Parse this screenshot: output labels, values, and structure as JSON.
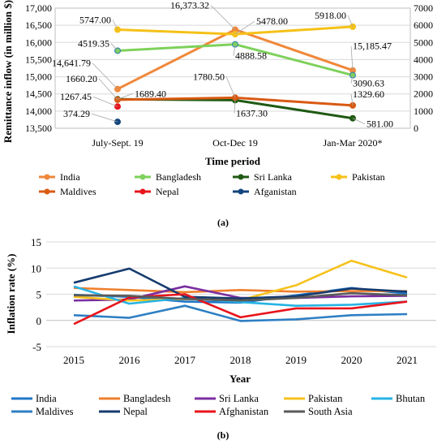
{
  "panels": {
    "a": {
      "caption": "(a)",
      "chart_data": {
        "type": "line",
        "xlabel": "Time period",
        "ylabel": "Remittance inflow (in million $)",
        "categories": [
          "July-Sept. 19",
          "Oct-Dec 19",
          "Jan-Mar 2020*"
        ],
        "y_left": {
          "min": 13500,
          "max": 17000,
          "step": 500,
          "tick_labels": [
            "13,500",
            "14,000",
            "14,500",
            "15,000",
            "15,500",
            "16,000",
            "16,500",
            "17,000"
          ]
        },
        "y_right": {
          "min": 0,
          "max": 7000,
          "step": 1000,
          "tick_labels": [
            "0",
            "1000",
            "2000",
            "3000",
            "4000",
            "5000",
            "6000",
            "7000"
          ]
        },
        "grid": true,
        "legend_position": "bottom",
        "series": [
          {
            "name": "India",
            "axis": "left",
            "color": "#f0883a",
            "values": [
              14641.79,
              16373.32,
              15185.47
            ],
            "labels": [
              "14,641.79",
              "16,373.32",
              "15,185.47"
            ]
          },
          {
            "name": "Bangladesh",
            "axis": "right",
            "color": "#7ed15b",
            "values": [
              4519.35,
              4888.58,
              3090.63
            ],
            "labels": [
              "4519.35",
              "4888.58",
              "3090.63"
            ]
          },
          {
            "name": "Sri Lanka",
            "axis": "right",
            "color": "#1f5a13",
            "values": [
              1689.4,
              1637.3,
              581.0
            ],
            "labels": [
              "1689.40",
              "1637.30",
              "581.00"
            ]
          },
          {
            "name": "Pakistan",
            "axis": "right",
            "color": "#f5c118",
            "values": [
              5747.0,
              5478.0,
              5918.0
            ],
            "labels": [
              "5747.00",
              "5478.00",
              "5918.00"
            ]
          },
          {
            "name": "Maldives",
            "axis": "right",
            "color": "#d95a12",
            "values": [
              1660.2,
              1780.5,
              1329.6
            ],
            "labels": [
              "1660.20",
              "1780.50",
              "1329.60"
            ]
          },
          {
            "name": "Nepal",
            "axis": "right",
            "color": "#e8141c",
            "values": [
              1267.45,
              null,
              null
            ],
            "labels": [
              "1267.45",
              "",
              ""
            ]
          },
          {
            "name": "Afganistan",
            "axis": "right",
            "color": "#14457e",
            "values": [
              374.29,
              null,
              null
            ],
            "labels": [
              "374.29",
              "",
              ""
            ]
          }
        ]
      }
    },
    "b": {
      "caption": "(b)",
      "chart_data": {
        "type": "line",
        "xlabel": "Year",
        "ylabel": "Inflation rate (%)",
        "x": [
          2015,
          2016,
          2017,
          2018,
          2019,
          2020,
          2021
        ],
        "x_tick_labels": [
          "2015",
          "2016",
          "2017",
          "2018",
          "2019",
          "2020",
          "2021"
        ],
        "y": {
          "min": -5,
          "max": 15,
          "step": 5,
          "tick_labels": [
            "-5",
            "0",
            "5",
            "10",
            "15"
          ]
        },
        "grid": true,
        "legend_position": "bottom",
        "series": [
          {
            "name": "India",
            "color": "#1f77c8",
            "values": [
              4.9,
              4.5,
              3.6,
              3.4,
              4.8,
              6.2,
              5.1
            ]
          },
          {
            "name": "Bangladesh",
            "color": "#ef7f2c",
            "values": [
              6.2,
              5.8,
              5.4,
              5.8,
              5.5,
              5.6,
              5.6
            ]
          },
          {
            "name": "Sri Lanka",
            "color": "#7a2ea0",
            "values": [
              3.8,
              4.0,
              6.5,
              4.3,
              4.3,
              4.6,
              4.7
            ]
          },
          {
            "name": "Pakistan",
            "color": "#f6c21c",
            "values": [
              4.5,
              3.8,
              4.1,
              3.9,
              6.7,
              11.4,
              8.2
            ]
          },
          {
            "name": "Bhutan",
            "color": "#27b3e4",
            "values": [
              6.5,
              3.2,
              4.3,
              3.5,
              2.8,
              3.0,
              3.6
            ]
          },
          {
            "name": "Maldives",
            "color": "#2e7fc3",
            "values": [
              1.0,
              0.5,
              2.8,
              -0.1,
              0.2,
              1.0,
              1.2
            ]
          },
          {
            "name": "Nepal",
            "color": "#163b6e",
            "values": [
              7.2,
              9.9,
              4.5,
              4.2,
              4.6,
              6.1,
              5.5
            ]
          },
          {
            "name": "Afghanistan",
            "color": "#e8141c",
            "values": [
              -0.7,
              4.4,
              5.0,
              0.6,
              2.3,
              2.3,
              3.6
            ]
          },
          {
            "name": "South Asia",
            "color": "#5a5a5a",
            "values": [
              4.8,
              4.7,
              4.1,
              3.8,
              4.3,
              5.2,
              4.8
            ]
          }
        ]
      }
    }
  }
}
